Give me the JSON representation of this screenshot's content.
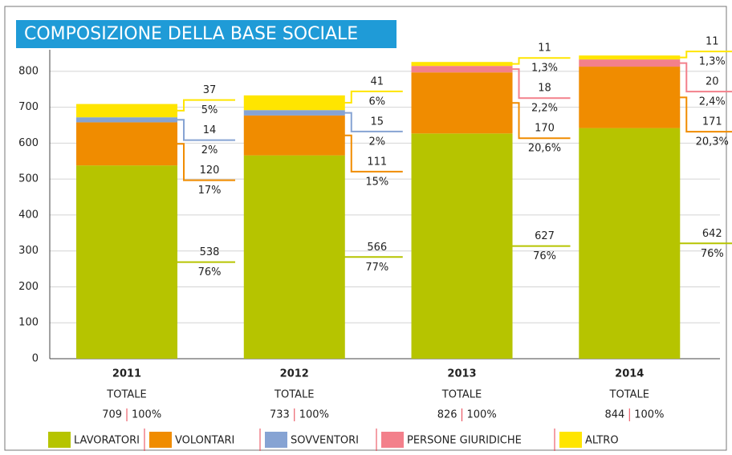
{
  "chart_data": {
    "type": "stacked_bar",
    "title": "COMPOSIZIONE DELLA BASE SOCIALE",
    "categories": [
      "2011",
      "2012",
      "2013",
      "2014"
    ],
    "series": [
      {
        "name": "LAVORATORI",
        "color": "#b6c400",
        "values": [
          538,
          566,
          627,
          642
        ],
        "value_labels": [
          "76%",
          "77%",
          "76%",
          "76%"
        ]
      },
      {
        "name": "VOLONTARI",
        "color": "#f08c00",
        "values": [
          120,
          111,
          170,
          171
        ],
        "value_labels": [
          "17%",
          "15%",
          "20,6%",
          "20,3%"
        ]
      },
      {
        "name": "SOVVENTORI",
        "color": "#86a3d3",
        "values": [
          14,
          15,
          null,
          null
        ],
        "value_labels": [
          "2%",
          "2%",
          null,
          null
        ]
      },
      {
        "name": "PERSONE GIURIDICHE",
        "color": "#f3808b",
        "values": [
          null,
          null,
          18,
          20
        ],
        "value_labels": [
          null,
          null,
          "2,2%",
          "2,4%"
        ]
      },
      {
        "name": "ALTRO",
        "color": "#ffe500",
        "values": [
          37,
          41,
          11,
          11
        ],
        "value_labels": [
          "5%",
          "6%",
          "1,3%",
          "1,3%"
        ]
      }
    ],
    "total_label": "TOTALE",
    "totals": [
      709,
      733,
      826,
      844
    ],
    "total_percent": "100%",
    "ylim": [
      0,
      860
    ],
    "yticks": [
      0,
      100,
      200,
      300,
      400,
      500,
      600,
      700,
      800
    ],
    "grid": true
  }
}
